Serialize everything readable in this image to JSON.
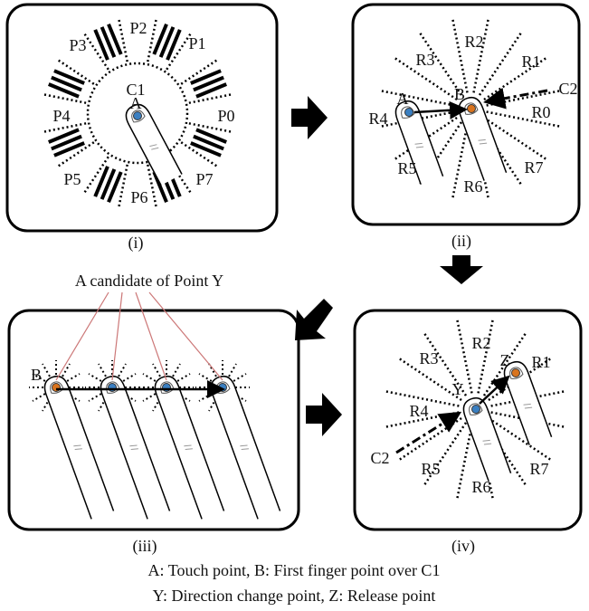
{
  "panels": [
    {
      "caption": "(i)",
      "labels": [
        "P0",
        "P1",
        "P2",
        "P3",
        "P4",
        "P5",
        "P6",
        "P7",
        "C1",
        "A"
      ]
    },
    {
      "caption": "(ii)",
      "labels": [
        "R0",
        "R1",
        "R2",
        "R3",
        "R4",
        "R5",
        "R6",
        "R7",
        "A",
        "B",
        "C2"
      ]
    },
    {
      "caption": "(iii)",
      "labels": [
        "B"
      ]
    },
    {
      "caption": "(iv)",
      "labels": [
        "R1",
        "R2",
        "R3",
        "R4",
        "R5",
        "R6",
        "R7",
        "Y",
        "Z",
        "C2"
      ]
    }
  ],
  "annotation": "A candidate of Point Y",
  "legend": [
    "A: Touch point, B: First finger point over C1",
    "Y: Direction change point, Z: Release point"
  ]
}
